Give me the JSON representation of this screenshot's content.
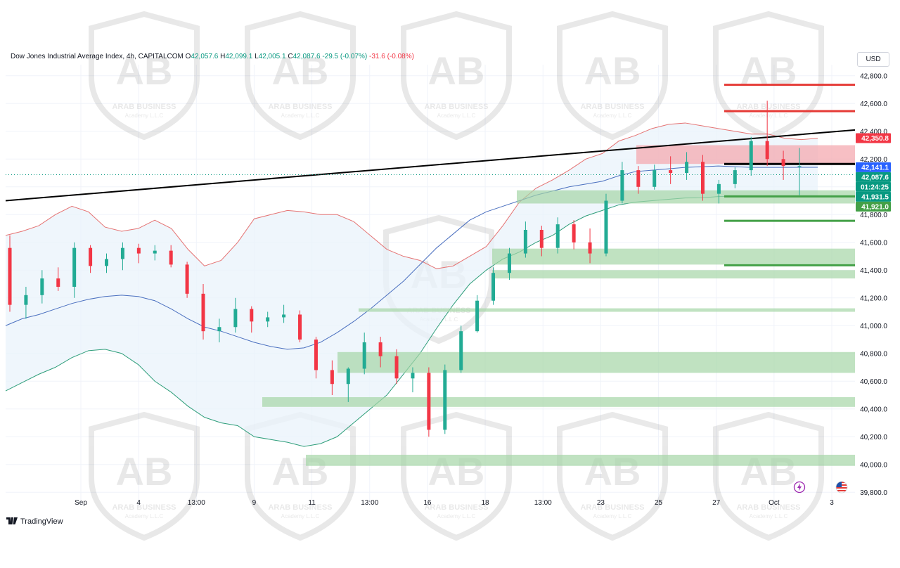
{
  "header": {
    "symbol": "Dow Jones Industrial Average Index, 4h, CAPITALCOM",
    "o_label": "O",
    "o_value": "42,057.6",
    "h_label": "H",
    "h_value": "42,099.1",
    "l_label": "L",
    "l_value": "42,005.1",
    "c_label": "C",
    "c_value": "42,087.6",
    "change": "-29.5 (-0.07%)",
    "change2": "-31.6 (-0.08%)"
  },
  "currency": "USD",
  "watermark": {
    "brand": "ARAB BUSINESS",
    "sub": "Academy L.L.C"
  },
  "branding": "TradingView",
  "icons": [
    "flash-icon",
    "us-flag-icon",
    "tradingview-logo-icon"
  ],
  "colors": {
    "up": "#22ab94",
    "down": "#f23645",
    "bb_upper": "#e57373",
    "bb_mid": "#4a6fbf",
    "bb_lower": "#2e9e7a",
    "bb_fill": "#eaf3fb",
    "demand_zone": "#a5d6a7",
    "supply_zone": "#f4a9b0",
    "resistance": "#e53935",
    "support": "#43a047",
    "trendline": "#000000"
  },
  "chart_data": {
    "type": "candlestick",
    "title": "Dow Jones Industrial Average Index, 4h, CAPITALCOM",
    "x_ticks": [
      "Sep",
      "4",
      "13:00",
      "9",
      "11",
      "13:00",
      "16",
      "18",
      "13:00",
      "23",
      "25",
      "27",
      "Oct",
      "3"
    ],
    "y_ticks": [
      39800,
      40000,
      40200,
      40400,
      40600,
      40800,
      41000,
      41200,
      41400,
      41600,
      41800,
      42000,
      42200,
      42400,
      42600,
      42800
    ],
    "ylim": [
      39700,
      42880
    ],
    "price_labels": [
      {
        "text": "42,350.8",
        "value": 42350.8,
        "color": "#f23645"
      },
      {
        "text": "42,141.1",
        "value": 42141.1,
        "color": "#2962ff"
      },
      {
        "text": "42,087.6",
        "value": 42087.6,
        "color": "#089981"
      },
      {
        "text": "01:24:25",
        "value": 42040,
        "color": "#089981"
      },
      {
        "text": "41,931.5",
        "value": 41931.5,
        "color": "#089981"
      },
      {
        "text": "41,921.0",
        "value": 41921.0,
        "color": "#43a047"
      }
    ],
    "resistance_levels": [
      42735,
      42545,
      42165
    ],
    "support_levels": [
      41931.5,
      41755,
      41435
    ],
    "supply_zone": [
      42165,
      42300
    ],
    "demand_zones": [
      [
        41880,
        41975
      ],
      [
        41440,
        41555
      ],
      [
        41340,
        41400
      ],
      [
        41100,
        41125
      ],
      [
        40660,
        40810
      ],
      [
        40415,
        40485
      ],
      [
        39990,
        40070
      ]
    ],
    "trendline": {
      "start": 41900,
      "end": 42410
    },
    "bollinger": {
      "upper": [
        41650,
        41680,
        41720,
        41800,
        41860,
        41820,
        41710,
        41680,
        41700,
        41760,
        41700,
        41550,
        41430,
        41470,
        41600,
        41770,
        41800,
        41830,
        41820,
        41800,
        41800,
        41750,
        41650,
        41550,
        41500,
        41470,
        41410,
        41430,
        41500,
        41570,
        41720,
        41890,
        41990,
        42050,
        42120,
        42200,
        42240,
        42330,
        42370,
        42420,
        42450,
        42460,
        42440,
        42420,
        42400,
        42380,
        42380,
        42350,
        42340,
        42350
      ],
      "middle": [
        41000,
        41050,
        41080,
        41120,
        41160,
        41190,
        41210,
        41220,
        41210,
        41180,
        41120,
        41050,
        40990,
        40960,
        40920,
        40880,
        40850,
        40830,
        40840,
        40880,
        40950,
        41030,
        41120,
        41220,
        41320,
        41440,
        41560,
        41660,
        41760,
        41820,
        41860,
        41900,
        41940,
        41970,
        42000,
        42020,
        42040,
        42080,
        42110,
        42120,
        42130,
        42140,
        42145,
        42150,
        42145,
        42140,
        42140,
        42140,
        42141,
        42141
      ],
      "lower": [
        40530,
        40590,
        40650,
        40700,
        40770,
        40820,
        40830,
        40800,
        40720,
        40600,
        40520,
        40420,
        40340,
        40300,
        40280,
        40200,
        40180,
        40160,
        40130,
        40150,
        40200,
        40300,
        40400,
        40500,
        40650,
        40800,
        40980,
        41150,
        41300,
        41400,
        41480,
        41530,
        41600,
        41650,
        41730,
        41790,
        41830,
        41870,
        41890,
        41900,
        41910,
        41920,
        41921,
        41930,
        41931,
        41931,
        41931,
        41931,
        41931,
        41931
      ]
    },
    "candles": [
      [
        41560,
        41650,
        41100,
        41150
      ],
      [
        41150,
        41280,
        41050,
        41220
      ],
      [
        41220,
        41400,
        41160,
        41340
      ],
      [
        41340,
        41420,
        41250,
        41280
      ],
      [
        41280,
        41600,
        41200,
        41560
      ],
      [
        41560,
        41580,
        41380,
        41430
      ],
      [
        41430,
        41520,
        41380,
        41480
      ],
      [
        41480,
        41600,
        41400,
        41560
      ],
      [
        41560,
        41590,
        41450,
        41520
      ],
      [
        41520,
        41580,
        41470,
        41540
      ],
      [
        41540,
        41580,
        41420,
        41440
      ],
      [
        41440,
        41460,
        41200,
        41230
      ],
      [
        41230,
        41300,
        40900,
        40960
      ],
      [
        40960,
        41050,
        40880,
        40990
      ],
      [
        40990,
        41200,
        40950,
        41120
      ],
      [
        41120,
        41140,
        40950,
        41030
      ],
      [
        41030,
        41100,
        40990,
        41060
      ],
      [
        41060,
        41150,
        41020,
        41080
      ],
      [
        41080,
        41110,
        40880,
        40900
      ],
      [
        40900,
        40920,
        40620,
        40680
      ],
      [
        40680,
        40750,
        40500,
        40580
      ],
      [
        40580,
        40700,
        40450,
        40690
      ],
      [
        40690,
        40950,
        40650,
        40880
      ],
      [
        40880,
        40920,
        40700,
        40780
      ],
      [
        40780,
        40830,
        40580,
        40620
      ],
      [
        40620,
        40700,
        40520,
        40660
      ],
      [
        40660,
        40700,
        40200,
        40250
      ],
      [
        40250,
        40720,
        40220,
        40680
      ],
      [
        40680,
        41000,
        40660,
        40960
      ],
      [
        40960,
        41220,
        40950,
        41180
      ],
      [
        41180,
        41420,
        41150,
        41380
      ],
      [
        41380,
        41560,
        41330,
        41520
      ],
      [
        41520,
        41750,
        41490,
        41690
      ],
      [
        41690,
        41720,
        41500,
        41560
      ],
      [
        41560,
        41780,
        41520,
        41730
      ],
      [
        41730,
        41760,
        41550,
        41600
      ],
      [
        41600,
        41700,
        41450,
        41520
      ],
      [
        41520,
        41950,
        41500,
        41900
      ],
      [
        41900,
        42180,
        41880,
        42120
      ],
      [
        42120,
        42150,
        41950,
        42000
      ],
      [
        42000,
        42160,
        41980,
        42120
      ],
      [
        42120,
        42220,
        42020,
        42100
      ],
      [
        42100,
        42250,
        42050,
        42180
      ],
      [
        42180,
        42230,
        41900,
        41950
      ],
      [
        41950,
        42050,
        41880,
        42020
      ],
      [
        42020,
        42140,
        41990,
        42120
      ],
      [
        42120,
        42360,
        42080,
        42330
      ],
      [
        42330,
        42620,
        42150,
        42200
      ],
      [
        42200,
        42260,
        42050,
        42150
      ],
      [
        42150,
        42280,
        41940,
        42150
      ]
    ]
  }
}
